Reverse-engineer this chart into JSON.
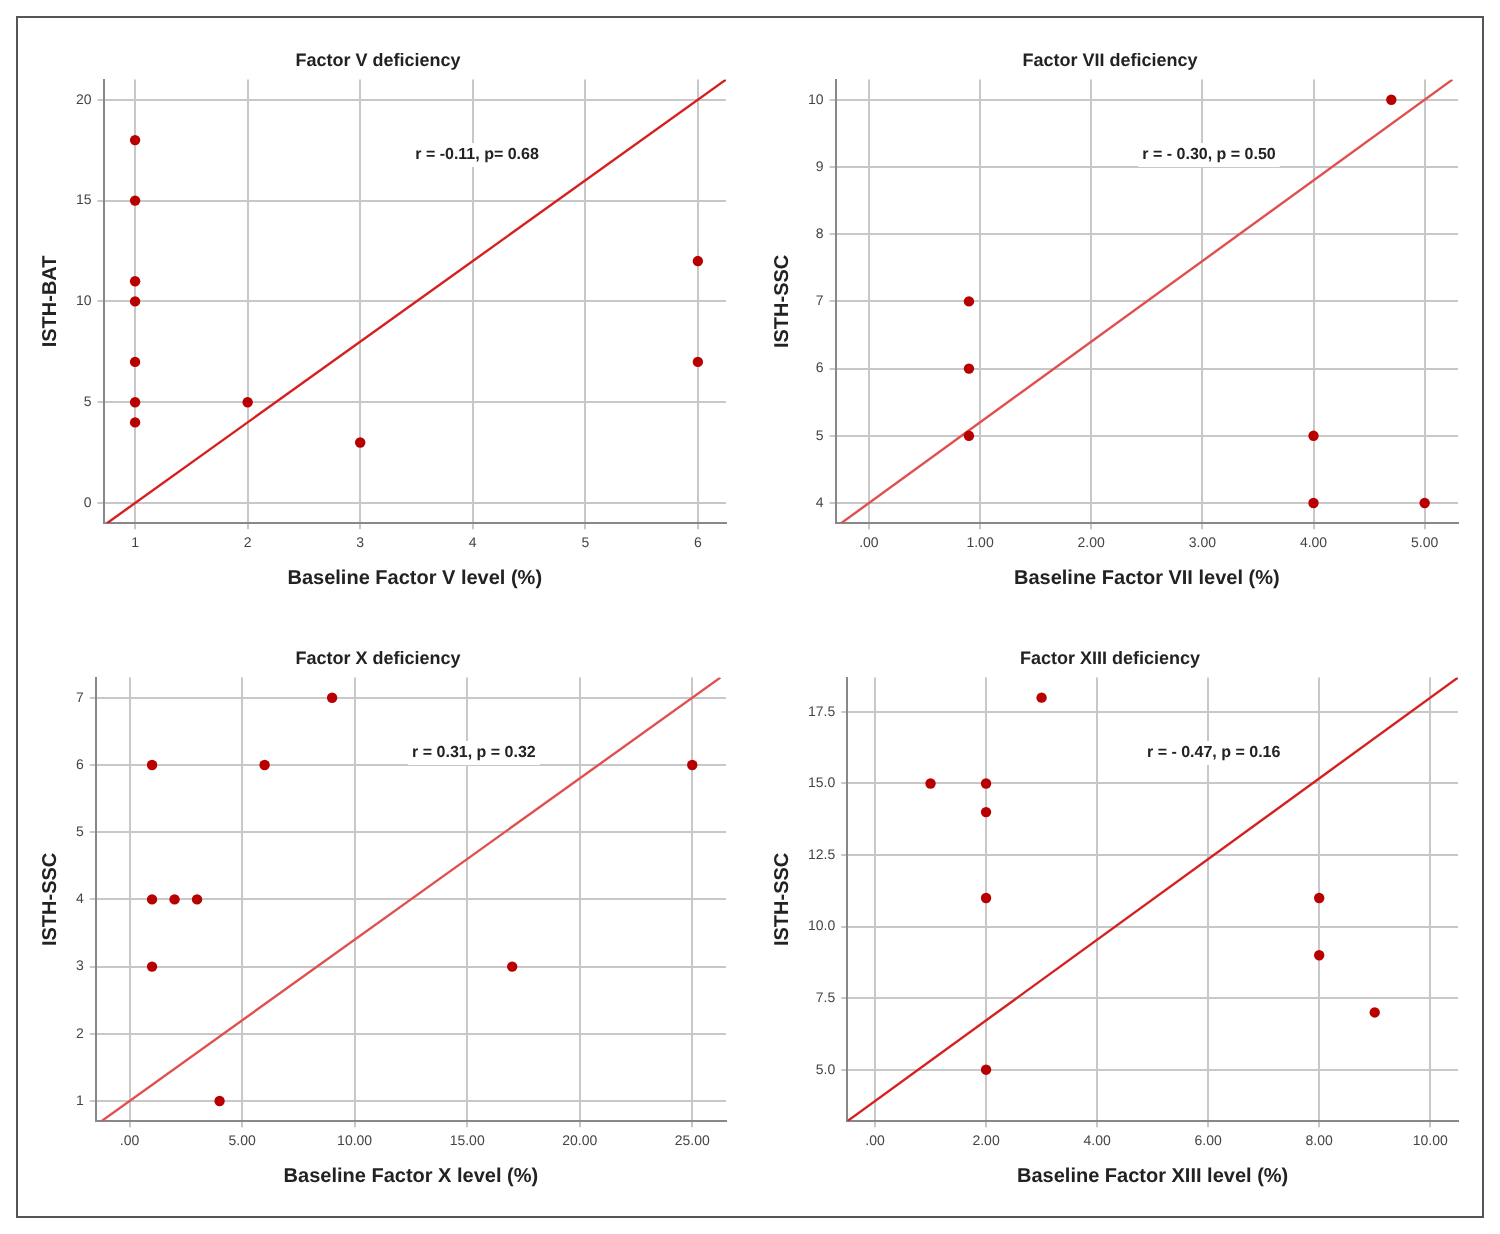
{
  "chart_data": [
    {
      "type": "scatter",
      "title": "Factor V deficiency",
      "xlabel": "Baseline Factor V level (%)",
      "ylabel": "ISTH-BAT",
      "annotations": [
        "r = -0.11, p= 0.68"
      ],
      "grid": true,
      "legend": false,
      "marker": "circle",
      "xlim": [
        0.72,
        6.25
      ],
      "ylim": [
        -1,
        21
      ],
      "xticks": [
        1,
        2,
        3,
        4,
        5,
        6
      ],
      "yticks": [
        0,
        5,
        10,
        15,
        20
      ],
      "series": [
        {
          "color": "#b80000",
          "x": [
            1,
            1,
            1,
            1,
            1,
            1,
            1,
            2,
            3,
            6,
            6
          ],
          "values": [
            18,
            15,
            11,
            10,
            7,
            5,
            4,
            5,
            3,
            12,
            7
          ]
        },
        {
          "type": "line",
          "color": "#d42020",
          "marker": "none",
          "x": [
            0.75,
            6.25
          ],
          "values": [
            -1,
            21
          ]
        }
      ]
    },
    {
      "type": "scatter",
      "title": "Factor VII deficiency",
      "xlabel": "Baseline Factor VII level (%)",
      "ylabel": "ISTH-SSC",
      "annotations": [
        "r = - 0.30, p = 0.50"
      ],
      "grid": true,
      "legend": false,
      "marker": "circle",
      "xlim": [
        -0.3,
        5.3
      ],
      "ylim": [
        3.7,
        10.3
      ],
      "xticks": [
        {
          "value": 0,
          "label": ".00"
        },
        {
          "value": 1,
          "label": "1.00"
        },
        {
          "value": 2,
          "label": "2.00"
        },
        {
          "value": 3,
          "label": "3.00"
        },
        {
          "value": 4,
          "label": "4.00"
        },
        {
          "value": 5,
          "label": "5.00"
        }
      ],
      "yticks": [
        4,
        5,
        6,
        7,
        8,
        9,
        10
      ],
      "series": [
        {
          "color": "#b80000",
          "x": [
            0.9,
            0.9,
            0.9,
            4,
            4,
            5,
            4.7
          ],
          "values": [
            7,
            6,
            5,
            5,
            4,
            4,
            10
          ]
        },
        {
          "type": "line",
          "color": "#e05050",
          "marker": "none",
          "x": [
            -0.25,
            5.25
          ],
          "values": [
            3.7,
            10.3
          ]
        }
      ]
    },
    {
      "type": "scatter",
      "title": "Factor X deficiency",
      "xlabel": "Baseline Factor X level (%)",
      "ylabel": "ISTH-SSC",
      "annotations": [
        "r = 0.31, p = 0.32"
      ],
      "grid": true,
      "legend": false,
      "marker": "circle",
      "xlim": [
        -1.5,
        26.5
      ],
      "ylim": [
        0.7,
        7.3
      ],
      "xticks": [
        {
          "value": 0,
          "label": ".00"
        },
        {
          "value": 5,
          "label": "5.00"
        },
        {
          "value": 10,
          "label": "10.00"
        },
        {
          "value": 15,
          "label": "15.00"
        },
        {
          "value": 20,
          "label": "20.00"
        },
        {
          "value": 25,
          "label": "25.00"
        }
      ],
      "yticks": [
        1,
        2,
        3,
        4,
        5,
        6,
        7
      ],
      "series": [
        {
          "color": "#b80000",
          "x": [
            1,
            6,
            9,
            25,
            1,
            2,
            3,
            1,
            17,
            4
          ],
          "values": [
            6,
            6,
            7,
            6,
            4,
            4,
            4,
            3,
            3,
            1
          ]
        },
        {
          "type": "line",
          "color": "#e05050",
          "marker": "none",
          "x": [
            -1.25,
            26.25
          ],
          "values": [
            0.7,
            7.3
          ]
        }
      ]
    },
    {
      "type": "scatter",
      "title": "Factor XIII deficiency",
      "xlabel": "Baseline Factor XIII level (%)",
      "ylabel": "ISTH-SSC",
      "annotations": [
        "r = - 0.47, p = 0.16"
      ],
      "grid": true,
      "legend": false,
      "marker": "circle",
      "xlim": [
        -0.5,
        10.5
      ],
      "ylim": [
        3.2,
        18.7
      ],
      "xticks": [
        {
          "value": 0,
          "label": ".00"
        },
        {
          "value": 2,
          "label": "2.00"
        },
        {
          "value": 4,
          "label": "4.00"
        },
        {
          "value": 6,
          "label": "6.00"
        },
        {
          "value": 8,
          "label": "8.00"
        },
        {
          "value": 10,
          "label": "10.00"
        }
      ],
      "yticks": [
        {
          "value": 5,
          "label": "5.0"
        },
        {
          "value": 7.5,
          "label": "7.5"
        },
        {
          "value": 10,
          "label": "10.0"
        },
        {
          "value": 12.5,
          "label": "12.5"
        },
        {
          "value": 15,
          "label": "15.0"
        },
        {
          "value": 17.5,
          "label": "17.5"
        }
      ],
      "series": [
        {
          "color": "#b80000",
          "x": [
            1,
            2,
            2,
            3,
            2,
            8,
            8,
            9,
            2
          ],
          "values": [
            15,
            15,
            14,
            18,
            11,
            11,
            9,
            7,
            5
          ]
        },
        {
          "type": "line",
          "color": "#d42020",
          "marker": "none",
          "x": [
            -0.5,
            10.5
          ],
          "values": [
            3.2,
            18.7
          ]
        }
      ]
    }
  ]
}
